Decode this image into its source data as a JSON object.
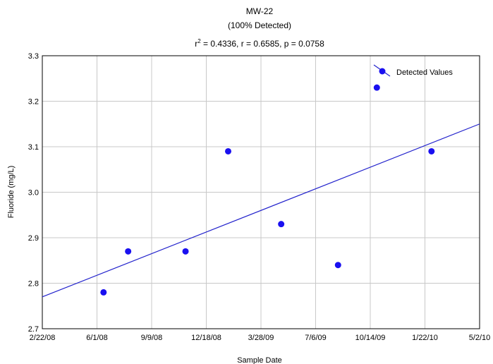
{
  "chart_data": {
    "type": "scatter",
    "title": "MW-22",
    "subtitle": "(100% Detected)",
    "stats": {
      "r2_prefix": "r",
      "r2_sup": "2",
      "r2_rest": " = 0.4336,  r = 0.6585, p = 0.0758"
    },
    "xlabel": "Sample Date",
    "ylabel": "Fluoride (mg/L)",
    "xlim": [
      "2008-02-22",
      "2010-05-02"
    ],
    "ylim": [
      2.7,
      3.3
    ],
    "x_ticks": [
      {
        "date": "2008-02-22",
        "label": "2/22/08"
      },
      {
        "date": "2008-06-01",
        "label": "6/1/08"
      },
      {
        "date": "2008-09-09",
        "label": "9/9/08"
      },
      {
        "date": "2008-12-18",
        "label": "12/18/08"
      },
      {
        "date": "2009-03-28",
        "label": "3/28/09"
      },
      {
        "date": "2009-07-06",
        "label": "7/6/09"
      },
      {
        "date": "2009-10-14",
        "label": "10/14/09"
      },
      {
        "date": "2010-01-22",
        "label": "1/22/10"
      },
      {
        "date": "2010-05-02",
        "label": "5/2/10"
      }
    ],
    "y_ticks": [
      "2.7",
      "2.8",
      "2.9",
      "3.0",
      "3.1",
      "3.2",
      "3.3"
    ],
    "grid": true,
    "legend": {
      "position": "top-right",
      "label": "Detected Values"
    },
    "series": [
      {
        "name": "Detected Values",
        "color": "#1a10f0",
        "points": [
          {
            "x": "2008-06-13",
            "y": 2.78
          },
          {
            "x": "2008-07-28",
            "y": 2.87
          },
          {
            "x": "2008-11-10",
            "y": 2.87
          },
          {
            "x": "2009-01-27",
            "y": 3.09
          },
          {
            "x": "2009-05-04",
            "y": 2.93
          },
          {
            "x": "2009-08-16",
            "y": 2.84
          },
          {
            "x": "2009-10-26",
            "y": 3.23
          },
          {
            "x": "2010-02-03",
            "y": 3.09
          }
        ]
      }
    ],
    "trend_line": {
      "color": "#2222cc",
      "start": {
        "x": "2008-02-22",
        "y": 2.77
      },
      "end": {
        "x": "2010-05-02",
        "y": 3.15
      }
    }
  }
}
